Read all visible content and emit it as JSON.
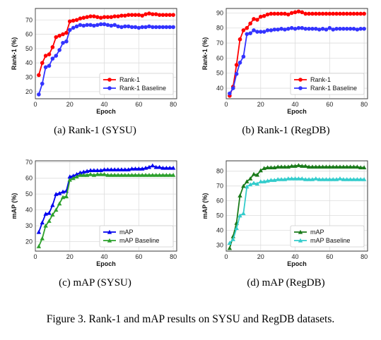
{
  "figure_caption": "Figure 3. Rank-1 and mAP results on SYSU and RegDB datasets.",
  "chart_data": [
    {
      "type": "line",
      "subcaption": "(a) Rank-1 (SYSU)",
      "xlabel": "Epoch",
      "ylabel": "Rank-1 (%)",
      "xlim": [
        0,
        82
      ],
      "ylim": [
        15,
        78
      ],
      "xticks": [
        0,
        20,
        40,
        60,
        80
      ],
      "yticks": [
        20,
        30,
        40,
        50,
        60,
        70
      ],
      "grid": true,
      "legend_position": "lower-right",
      "x": [
        2,
        4,
        6,
        8,
        10,
        12,
        14,
        16,
        18,
        20,
        22,
        24,
        26,
        28,
        30,
        32,
        34,
        36,
        38,
        40,
        42,
        44,
        46,
        48,
        50,
        52,
        54,
        56,
        58,
        60,
        62,
        64,
        66,
        68,
        70,
        72,
        74,
        76,
        78,
        80
      ],
      "series": [
        {
          "name": "Rank-1",
          "color": "#ff0000",
          "marker": "circle",
          "values": [
            31.5,
            40,
            45,
            46,
            51,
            58,
            59,
            60,
            61,
            69,
            69.5,
            70,
            71,
            71.5,
            72,
            72.5,
            72.5,
            72,
            71.5,
            72,
            72,
            72,
            72.5,
            72.5,
            73,
            73,
            73.5,
            73.5,
            73.5,
            73.5,
            73,
            74,
            74.5,
            74,
            74,
            73.5,
            73.5,
            73.5,
            73.5,
            73.5
          ]
        },
        {
          "name": "Rank-1 Baseline",
          "color": "#3333ff",
          "marker": "circle",
          "values": [
            18,
            25.5,
            37,
            38,
            43,
            45,
            49,
            54,
            55,
            63,
            64.5,
            65.5,
            66.5,
            66,
            66.5,
            66.5,
            66,
            66.5,
            67,
            67,
            66.5,
            66,
            66.5,
            65.5,
            65,
            65.5,
            65.5,
            65,
            65,
            64.5,
            65,
            65,
            65.5,
            65,
            65,
            65,
            65,
            65,
            65,
            65
          ]
        }
      ]
    },
    {
      "type": "line",
      "subcaption": "(b) Rank-1 (RegDB)",
      "xlabel": "Epoch",
      "ylabel": "Rank-1 (%)",
      "xlim": [
        0,
        82
      ],
      "ylim": [
        33,
        93
      ],
      "xticks": [
        0,
        20,
        40,
        60,
        80
      ],
      "yticks": [
        40,
        50,
        60,
        70,
        80,
        90
      ],
      "grid": true,
      "legend_position": "lower-right",
      "x": [
        2,
        4,
        6,
        8,
        10,
        12,
        14,
        16,
        18,
        20,
        22,
        24,
        26,
        28,
        30,
        32,
        34,
        36,
        38,
        40,
        42,
        44,
        46,
        48,
        50,
        52,
        54,
        56,
        58,
        60,
        62,
        64,
        66,
        68,
        70,
        72,
        74,
        76,
        78,
        80
      ],
      "series": [
        {
          "name": "Rank-1",
          "color": "#ff0000",
          "marker": "circle",
          "values": [
            35,
            41,
            55.5,
            72.5,
            78.5,
            80,
            83,
            86,
            85.5,
            87.5,
            88,
            89,
            89.5,
            89.5,
            89.5,
            89.5,
            89.5,
            89,
            90,
            90.5,
            91,
            90.5,
            89.5,
            89.5,
            89.5,
            89.5,
            89.5,
            89.5,
            89.5,
            89.5,
            89.5,
            89.5,
            89.5,
            89.5,
            89.5,
            89.5,
            89.5,
            89.5,
            89.5,
            89.5
          ]
        },
        {
          "name": "Rank-1 Baseline",
          "color": "#3333ff",
          "marker": "circle",
          "values": [
            36.5,
            40,
            49.5,
            57,
            61,
            76,
            76.5,
            78.5,
            77.5,
            77.5,
            77.5,
            78.5,
            78.5,
            79,
            79,
            79.5,
            79,
            79.5,
            80,
            79.5,
            80,
            80,
            79.5,
            79.5,
            79.5,
            79.5,
            79,
            79.5,
            79,
            80,
            79,
            79.5,
            79.5,
            79.5,
            79.5,
            79.5,
            79.5,
            79,
            79.5,
            79.5
          ]
        }
      ]
    },
    {
      "type": "line",
      "subcaption": "(c) mAP (SYSU)",
      "xlabel": "Epoch",
      "ylabel": "mAP (%)",
      "xlim": [
        0,
        82
      ],
      "ylim": [
        14,
        71
      ],
      "xticks": [
        0,
        20,
        40,
        60,
        80
      ],
      "yticks": [
        20,
        30,
        40,
        50,
        60,
        70
      ],
      "grid": true,
      "legend_position": "lower-right",
      "x": [
        2,
        4,
        6,
        8,
        10,
        12,
        14,
        16,
        18,
        20,
        22,
        24,
        26,
        28,
        30,
        32,
        34,
        36,
        38,
        40,
        42,
        44,
        46,
        48,
        50,
        52,
        54,
        56,
        58,
        60,
        62,
        64,
        66,
        68,
        70,
        72,
        74,
        76,
        78,
        80
      ],
      "series": [
        {
          "name": "mAP",
          "color": "#0000ee",
          "marker": "triangle",
          "values": [
            26,
            32,
            37.5,
            38,
            43,
            50,
            50.5,
            51.5,
            52,
            61,
            61.5,
            62.5,
            63.5,
            64,
            64.5,
            65,
            65,
            65,
            65,
            65.5,
            65.5,
            65.5,
            65.5,
            65.5,
            65.5,
            65.5,
            65.5,
            66,
            66,
            66,
            66,
            66.5,
            67,
            68,
            67,
            67,
            66.5,
            66.5,
            66.5,
            66.5
          ]
        },
        {
          "name": "mAP Baseline",
          "color": "#2ca02c",
          "marker": "triangle",
          "values": [
            17,
            22,
            30,
            33,
            37,
            40,
            44,
            48,
            48.5,
            59,
            60,
            61,
            62,
            62,
            62,
            62.5,
            62,
            62.5,
            62.5,
            62.5,
            62,
            62,
            62,
            62,
            62,
            62,
            62,
            62,
            62,
            62,
            62,
            62,
            62,
            62,
            62,
            62,
            62,
            62,
            62,
            62
          ]
        }
      ]
    },
    {
      "type": "line",
      "subcaption": "(d) mAP (RegDB)",
      "xlabel": "Epoch",
      "ylabel": "mAP (%)",
      "xlim": [
        0,
        82
      ],
      "ylim": [
        26,
        87
      ],
      "xticks": [
        0,
        20,
        40,
        60,
        80
      ],
      "yticks": [
        30,
        40,
        50,
        60,
        70,
        80
      ],
      "grid": true,
      "legend_position": "lower-right",
      "x": [
        2,
        4,
        6,
        8,
        10,
        12,
        14,
        16,
        18,
        20,
        22,
        24,
        26,
        28,
        30,
        32,
        34,
        36,
        38,
        40,
        42,
        44,
        46,
        48,
        50,
        52,
        54,
        56,
        58,
        60,
        62,
        64,
        66,
        68,
        70,
        72,
        74,
        76,
        78,
        80
      ],
      "series": [
        {
          "name": "mAP",
          "color": "#1a7a1a",
          "marker": "triangle",
          "values": [
            28,
            36,
            45,
            63.5,
            70,
            73,
            75,
            78,
            77.5,
            80.5,
            82,
            82.5,
            82.5,
            82.5,
            83,
            83,
            83,
            83,
            83.5,
            83.5,
            84,
            83.5,
            83.5,
            83,
            83,
            83,
            83,
            83,
            83,
            83,
            83,
            83,
            83,
            83,
            83,
            83,
            83,
            83,
            82.5,
            82.5
          ]
        },
        {
          "name": "mAP Baseline",
          "color": "#33cccc",
          "marker": "triangle",
          "values": [
            31.5,
            34,
            41.5,
            50,
            51.5,
            69.5,
            71,
            72,
            71.5,
            73,
            73,
            73.5,
            74,
            74,
            74.5,
            74.5,
            74.5,
            75,
            75,
            75,
            75,
            75,
            74.5,
            74.5,
            74.5,
            75,
            74.5,
            74.5,
            74.5,
            74.5,
            74.5,
            74.5,
            75,
            74.5,
            74.5,
            74.5,
            74.5,
            74.5,
            74.5,
            74.5
          ]
        }
      ]
    }
  ]
}
